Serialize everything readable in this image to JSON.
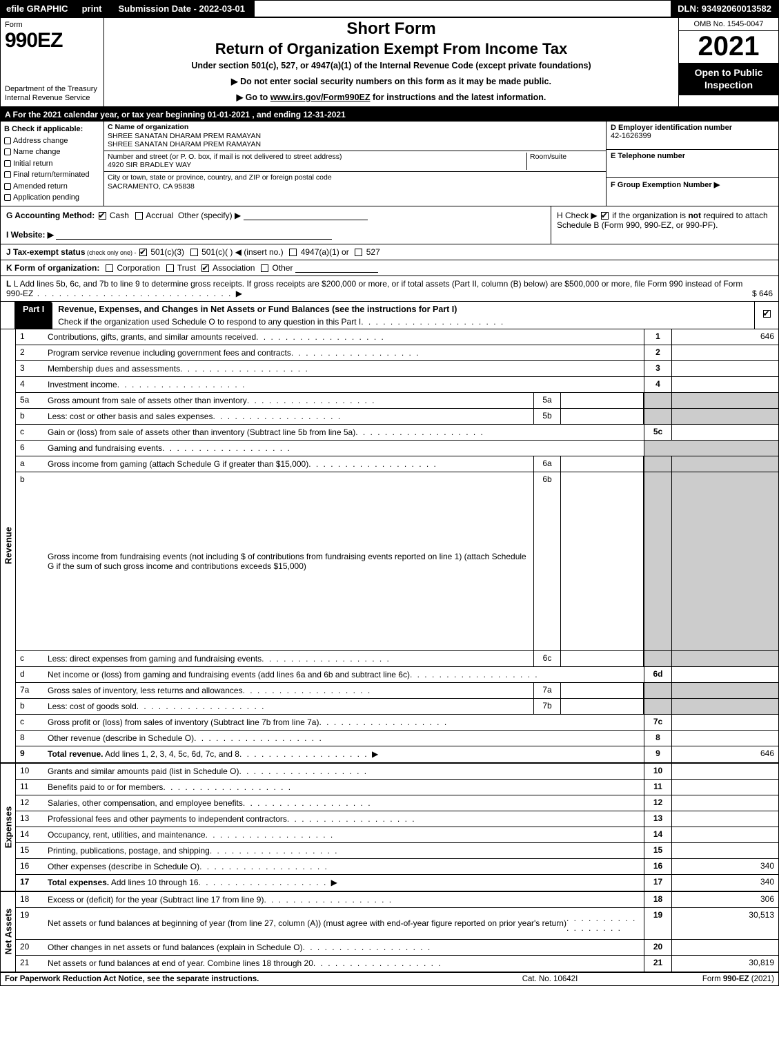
{
  "topbar": {
    "efile": "efile GRAPHIC",
    "print": "print",
    "subdate": "Submission Date - 2022-03-01",
    "dln": "DLN: 93492060013582"
  },
  "header": {
    "form_label": "Form",
    "form_no": "990EZ",
    "dept": "Department of the Treasury\nInternal Revenue Service",
    "short_form": "Short Form",
    "title": "Return of Organization Exempt From Income Tax",
    "subtitle": "Under section 501(c), 527, or 4947(a)(1) of the Internal Revenue Code (except private foundations)",
    "line1": "▶ Do not enter social security numbers on this form as it may be made public.",
    "line2_pre": "▶ Go to ",
    "line2_link": "www.irs.gov/Form990EZ",
    "line2_post": " for instructions and the latest information.",
    "omb": "OMB No. 1545-0047",
    "year": "2021",
    "open": "Open to Public Inspection"
  },
  "line_a": "A  For the 2021 calendar year, or tax year beginning 01-01-2021 , and ending 12-31-2021",
  "col_b": {
    "label": "B  Check if applicable:",
    "items": [
      "Address change",
      "Name change",
      "Initial return",
      "Final return/terminated",
      "Amended return",
      "Application pending"
    ]
  },
  "col_c": {
    "name_label": "C Name of organization",
    "name1": "SHREE SANATAN DHARAM PREM RAMAYAN",
    "name2": "SHREE SANATAN DHARAM PREM RAMAYAN",
    "addr_label": "Number and street (or P. O. box, if mail is not delivered to street address)",
    "room_label": "Room/suite",
    "addr": "4920 SIR BRADLEY WAY",
    "city_label": "City or town, state or province, country, and ZIP or foreign postal code",
    "city": "SACRAMENTO, CA  95838"
  },
  "col_def": {
    "d_label": "D Employer identification number",
    "d_val": "42-1626399",
    "e_label": "E Telephone number",
    "e_val": "",
    "f_label": "F Group Exemption Number  ▶",
    "f_val": ""
  },
  "row_g": {
    "label": "G Accounting Method:",
    "cash": "Cash",
    "accrual": "Accrual",
    "other": "Other (specify) ▶"
  },
  "row_h": {
    "text_pre": "H  Check ▶ ",
    "text_post": " if the organization is not required to attach Schedule B (Form 990, 990-EZ, or 990-PF).",
    "not_word": "not"
  },
  "row_i": {
    "label": "I Website: ▶"
  },
  "row_j": {
    "label": "J Tax-exempt status",
    "note": " (check only one) - ",
    "o1": "501(c)(3)",
    "o2": "501(c)(   ) ◀ (insert no.)",
    "o3": "4947(a)(1) or",
    "o4": "527"
  },
  "row_k": {
    "label": "K Form of organization:",
    "o1": "Corporation",
    "o2": "Trust",
    "o3": "Association",
    "o4": "Other"
  },
  "row_l": {
    "text": "L Add lines 5b, 6c, and 7b to line 9 to determine gross receipts. If gross receipts are $200,000 or more, or if total assets (Part II, column (B) below) are $500,000 or more, file Form 990 instead of Form 990-EZ",
    "val": "$ 646"
  },
  "part1": {
    "tab": "Part I",
    "title": "Revenue, Expenses, and Changes in Net Assets or Fund Balances (see the instructions for Part I)",
    "check_line": "Check if the organization used Schedule O to respond to any question in this Part I"
  },
  "revenue": [
    {
      "n": "1",
      "d": "Contributions, gifts, grants, and similar amounts received",
      "rn": "1",
      "rv": "646"
    },
    {
      "n": "2",
      "d": "Program service revenue including government fees and contracts",
      "rn": "2",
      "rv": ""
    },
    {
      "n": "3",
      "d": "Membership dues and assessments",
      "rn": "3",
      "rv": ""
    },
    {
      "n": "4",
      "d": "Investment income",
      "rn": "4",
      "rv": ""
    },
    {
      "n": "5a",
      "d": "Gross amount from sale of assets other than inventory",
      "in": "5a",
      "iv": "",
      "shade": true
    },
    {
      "n": "b",
      "d": "Less: cost or other basis and sales expenses",
      "in": "5b",
      "iv": "",
      "shade": true
    },
    {
      "n": "c",
      "d": "Gain or (loss) from sale of assets other than inventory (Subtract line 5b from line 5a)",
      "rn": "5c",
      "rv": ""
    },
    {
      "n": "6",
      "d": "Gaming and fundraising events",
      "shade": true,
      "noright": true
    },
    {
      "n": "a",
      "d": "Gross income from gaming (attach Schedule G if greater than $15,000)",
      "in": "6a",
      "iv": "",
      "shade": true
    },
    {
      "n": "b",
      "d": "Gross income from fundraising events (not including $                   of contributions from fundraising events reported on line 1) (attach Schedule G if the sum of such gross income and contributions exceeds $15,000)",
      "in": "6b",
      "iv": "",
      "shade": true,
      "tall": true
    },
    {
      "n": "c",
      "d": "Less: direct expenses from gaming and fundraising events",
      "in": "6c",
      "iv": "",
      "shade": true
    },
    {
      "n": "d",
      "d": "Net income or (loss) from gaming and fundraising events (add lines 6a and 6b and subtract line 6c)",
      "rn": "6d",
      "rv": ""
    },
    {
      "n": "7a",
      "d": "Gross sales of inventory, less returns and allowances",
      "in": "7a",
      "iv": "",
      "shade": true
    },
    {
      "n": "b",
      "d": "Less: cost of goods sold",
      "in": "7b",
      "iv": "",
      "shade": true
    },
    {
      "n": "c",
      "d": "Gross profit or (loss) from sales of inventory (Subtract line 7b from line 7a)",
      "rn": "7c",
      "rv": ""
    },
    {
      "n": "8",
      "d": "Other revenue (describe in Schedule O)",
      "rn": "8",
      "rv": ""
    },
    {
      "n": "9",
      "d": "Total revenue. Add lines 1, 2, 3, 4, 5c, 6d, 7c, and 8",
      "rn": "9",
      "rv": "646",
      "bold": true,
      "arrow": true
    }
  ],
  "expenses": [
    {
      "n": "10",
      "d": "Grants and similar amounts paid (list in Schedule O)",
      "rn": "10",
      "rv": ""
    },
    {
      "n": "11",
      "d": "Benefits paid to or for members",
      "rn": "11",
      "rv": ""
    },
    {
      "n": "12",
      "d": "Salaries, other compensation, and employee benefits",
      "rn": "12",
      "rv": ""
    },
    {
      "n": "13",
      "d": "Professional fees and other payments to independent contractors",
      "rn": "13",
      "rv": ""
    },
    {
      "n": "14",
      "d": "Occupancy, rent, utilities, and maintenance",
      "rn": "14",
      "rv": ""
    },
    {
      "n": "15",
      "d": "Printing, publications, postage, and shipping",
      "rn": "15",
      "rv": ""
    },
    {
      "n": "16",
      "d": "Other expenses (describe in Schedule O)",
      "rn": "16",
      "rv": "340"
    },
    {
      "n": "17",
      "d": "Total expenses. Add lines 10 through 16",
      "rn": "17",
      "rv": "340",
      "bold": true,
      "arrow": true
    }
  ],
  "netassets": [
    {
      "n": "18",
      "d": "Excess or (deficit) for the year (Subtract line 17 from line 9)",
      "rn": "18",
      "rv": "306"
    },
    {
      "n": "19",
      "d": "Net assets or fund balances at beginning of year (from line 27, column (A)) (must agree with end-of-year figure reported on prior year's return)",
      "rn": "19",
      "rv": "30,513",
      "tall": true
    },
    {
      "n": "20",
      "d": "Other changes in net assets or fund balances (explain in Schedule O)",
      "rn": "20",
      "rv": ""
    },
    {
      "n": "21",
      "d": "Net assets or fund balances at end of year. Combine lines 18 through 20",
      "rn": "21",
      "rv": "30,819"
    }
  ],
  "side_labels": {
    "rev": "Revenue",
    "exp": "Expenses",
    "net": "Net Assets"
  },
  "footer": {
    "f1": "For Paperwork Reduction Act Notice, see the separate instructions.",
    "f2": "Cat. No. 10642I",
    "f3_pre": "Form ",
    "f3_b": "990-EZ",
    "f3_post": " (2021)"
  }
}
